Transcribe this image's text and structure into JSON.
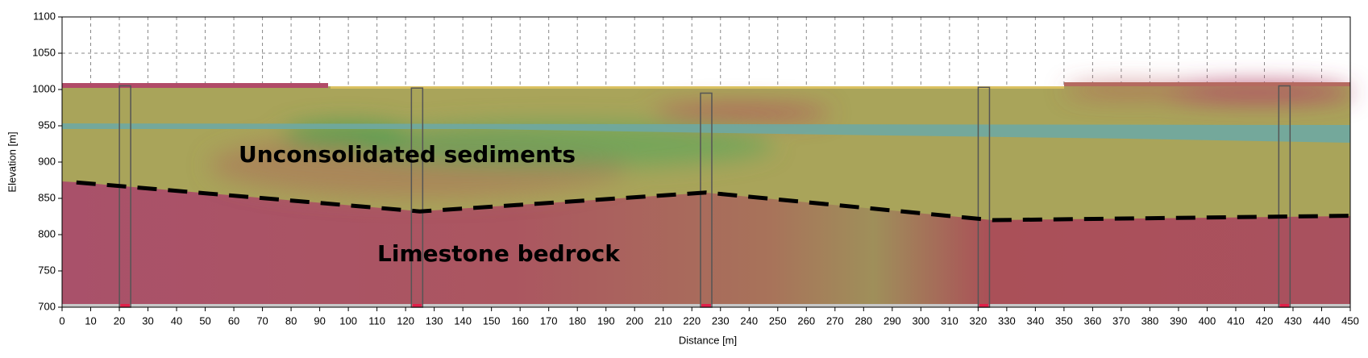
{
  "chart_data": {
    "type": "cross-section",
    "x_label": "Distance [m]",
    "y_label": "Elevation [m]",
    "xlim": [
      0,
      450
    ],
    "ylim": [
      700,
      1100
    ],
    "xticks": [
      0,
      10,
      20,
      30,
      40,
      50,
      60,
      70,
      80,
      90,
      100,
      110,
      120,
      130,
      140,
      150,
      160,
      170,
      180,
      190,
      200,
      210,
      220,
      230,
      240,
      250,
      260,
      270,
      280,
      290,
      300,
      310,
      320,
      330,
      340,
      350,
      360,
      370,
      380,
      390,
      400,
      410,
      420,
      430,
      440,
      450
    ],
    "yticks": [
      700,
      750,
      800,
      850,
      900,
      950,
      1000,
      1050,
      1100
    ],
    "grid": true,
    "annotations": [
      "Unconsolidated sediments",
      "Limestone bedrock"
    ],
    "series": [
      {
        "color": "#000000",
        "x": [
          5,
          125,
          225,
          325,
          450
        ],
        "values": [
          872,
          832,
          858,
          820,
          826
        ]
      }
    ],
    "boreholes": {
      "x": [
        22,
        124,
        225,
        322,
        427
      ],
      "top": [
        1005,
        1002,
        995,
        1003,
        1005
      ]
    }
  }
}
